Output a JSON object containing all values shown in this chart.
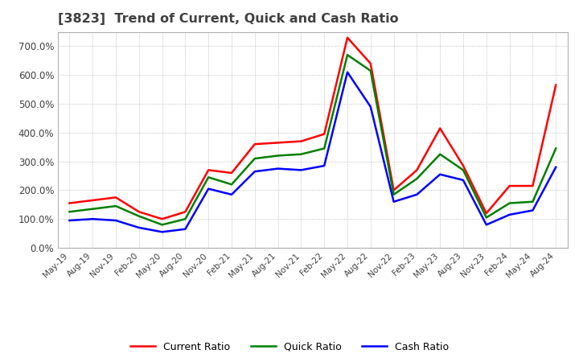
{
  "title": "[3823]  Trend of Current, Quick and Cash Ratio",
  "x_labels": [
    "May-19",
    "Aug-19",
    "Nov-19",
    "Feb-20",
    "May-20",
    "Aug-20",
    "Nov-20",
    "Feb-21",
    "May-21",
    "Aug-21",
    "Nov-21",
    "Feb-22",
    "May-22",
    "Aug-22",
    "Nov-22",
    "Feb-23",
    "May-23",
    "Aug-23",
    "Nov-23",
    "Feb-24",
    "May-24",
    "Aug-24"
  ],
  "current_ratio": [
    155,
    165,
    175,
    125,
    100,
    125,
    270,
    260,
    360,
    365,
    370,
    395,
    730,
    640,
    200,
    270,
    415,
    285,
    120,
    215,
    215,
    565
  ],
  "quick_ratio": [
    125,
    135,
    145,
    110,
    80,
    100,
    245,
    220,
    310,
    320,
    325,
    345,
    670,
    615,
    185,
    240,
    325,
    270,
    105,
    155,
    160,
    345
  ],
  "cash_ratio": [
    95,
    100,
    95,
    70,
    55,
    65,
    205,
    185,
    265,
    275,
    270,
    285,
    610,
    490,
    160,
    185,
    255,
    235,
    80,
    115,
    130,
    280
  ],
  "ylim": [
    0,
    750
  ],
  "yticks": [
    0,
    100,
    200,
    300,
    400,
    500,
    600,
    700
  ],
  "current_color": "#ff0000",
  "quick_color": "#008000",
  "cash_color": "#0000ff",
  "bg_color": "#ffffff",
  "grid_color": "#b0b0b0",
  "title_color": "#404040"
}
